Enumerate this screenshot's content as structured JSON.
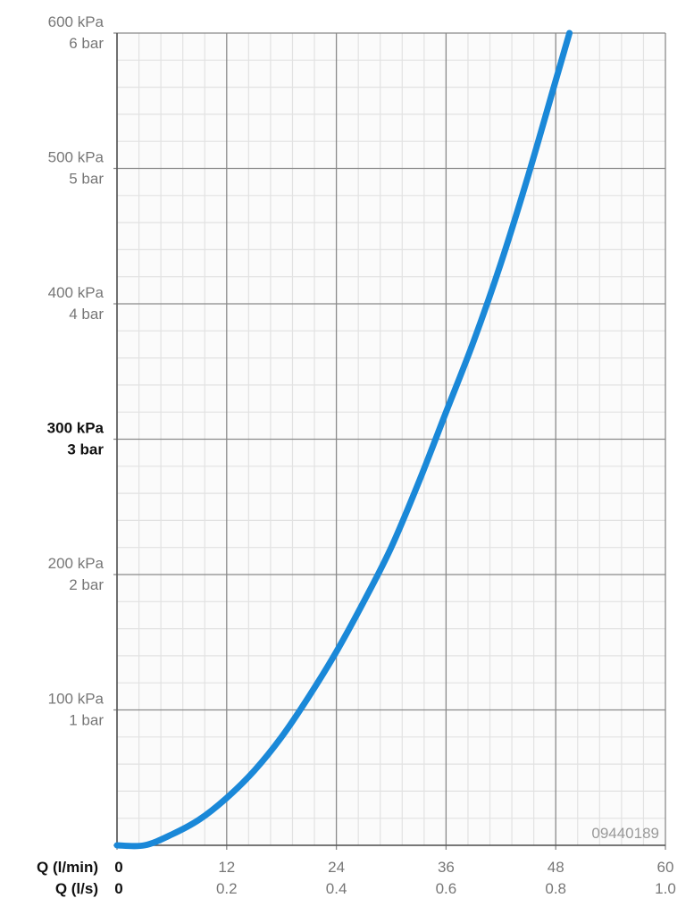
{
  "chart_data": {
    "type": "line",
    "title": "",
    "xlabel": "",
    "ylabel": "",
    "x_axis_labels": [
      "Q (l/min)",
      "Q (l/s)"
    ],
    "x_ticks_lmin": [
      "0",
      "12",
      "24",
      "36",
      "48",
      "60"
    ],
    "x_ticks_ls": [
      "0",
      "0.2",
      "0.4",
      "0.6",
      "0.8",
      "1.0"
    ],
    "y_ticks_kpa": [
      "",
      "100 kPa",
      "200 kPa",
      "300 kPa",
      "400 kPa",
      "500 kPa",
      "600 kPa"
    ],
    "y_ticks_bar": [
      "",
      "1 bar",
      "2 bar",
      "3 bar",
      "4 bar",
      "5 bar",
      "6 bar"
    ],
    "highlighted_y_tick": "300 kPa",
    "xlim": [
      0,
      60
    ],
    "ylim": [
      0,
      600
    ],
    "x_unit": "l/min",
    "y_unit": "kPa",
    "grid": true,
    "minor_grid_divisions": 5,
    "series": [
      {
        "color": "#1a88d8",
        "x": [
          0,
          3,
          6,
          9,
          12,
          15,
          18,
          21,
          24,
          27,
          30,
          33,
          36,
          39,
          42,
          45,
          48,
          49.5
        ],
        "y": [
          0,
          0,
          8,
          19,
          35,
          55,
          80,
          110,
          143,
          180,
          220,
          268,
          320,
          372,
          430,
          495,
          565,
          600
        ]
      }
    ],
    "annotation": "09440189"
  }
}
